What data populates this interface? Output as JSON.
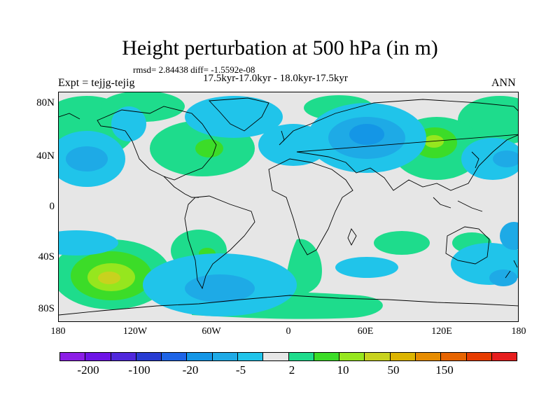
{
  "title": "Height perturbation at 500 hPa (in m)",
  "stats": "rmsd= 2.84438 diff= -1.5592e-08",
  "period": "17.5kyr-17.0kyr - 18.0kyr-17.5kyr",
  "experiment": "Expt = tejjg-tejig",
  "season": "ANN",
  "axes": {
    "y_labels": [
      "80N",
      "40N",
      "0",
      "40S",
      "80S"
    ],
    "x_labels": [
      "180",
      "120W",
      "60W",
      "0",
      "60E",
      "120E",
      "180"
    ]
  },
  "colorbar": {
    "colors": [
      "#8c1ee6",
      "#6e14e6",
      "#5028dc",
      "#283cd2",
      "#1e64e6",
      "#1496e6",
      "#1eaae6",
      "#20c4ea",
      "#e6e6e6",
      "#1edc8c",
      "#3cdc28",
      "#96e61e",
      "#c8d21e",
      "#dcb400",
      "#e68c00",
      "#e66400",
      "#e63c00",
      "#e61e1e"
    ],
    "labels": [
      "-200",
      "-100",
      "-20",
      "-5",
      "2",
      "10",
      "50",
      "150"
    ]
  }
}
